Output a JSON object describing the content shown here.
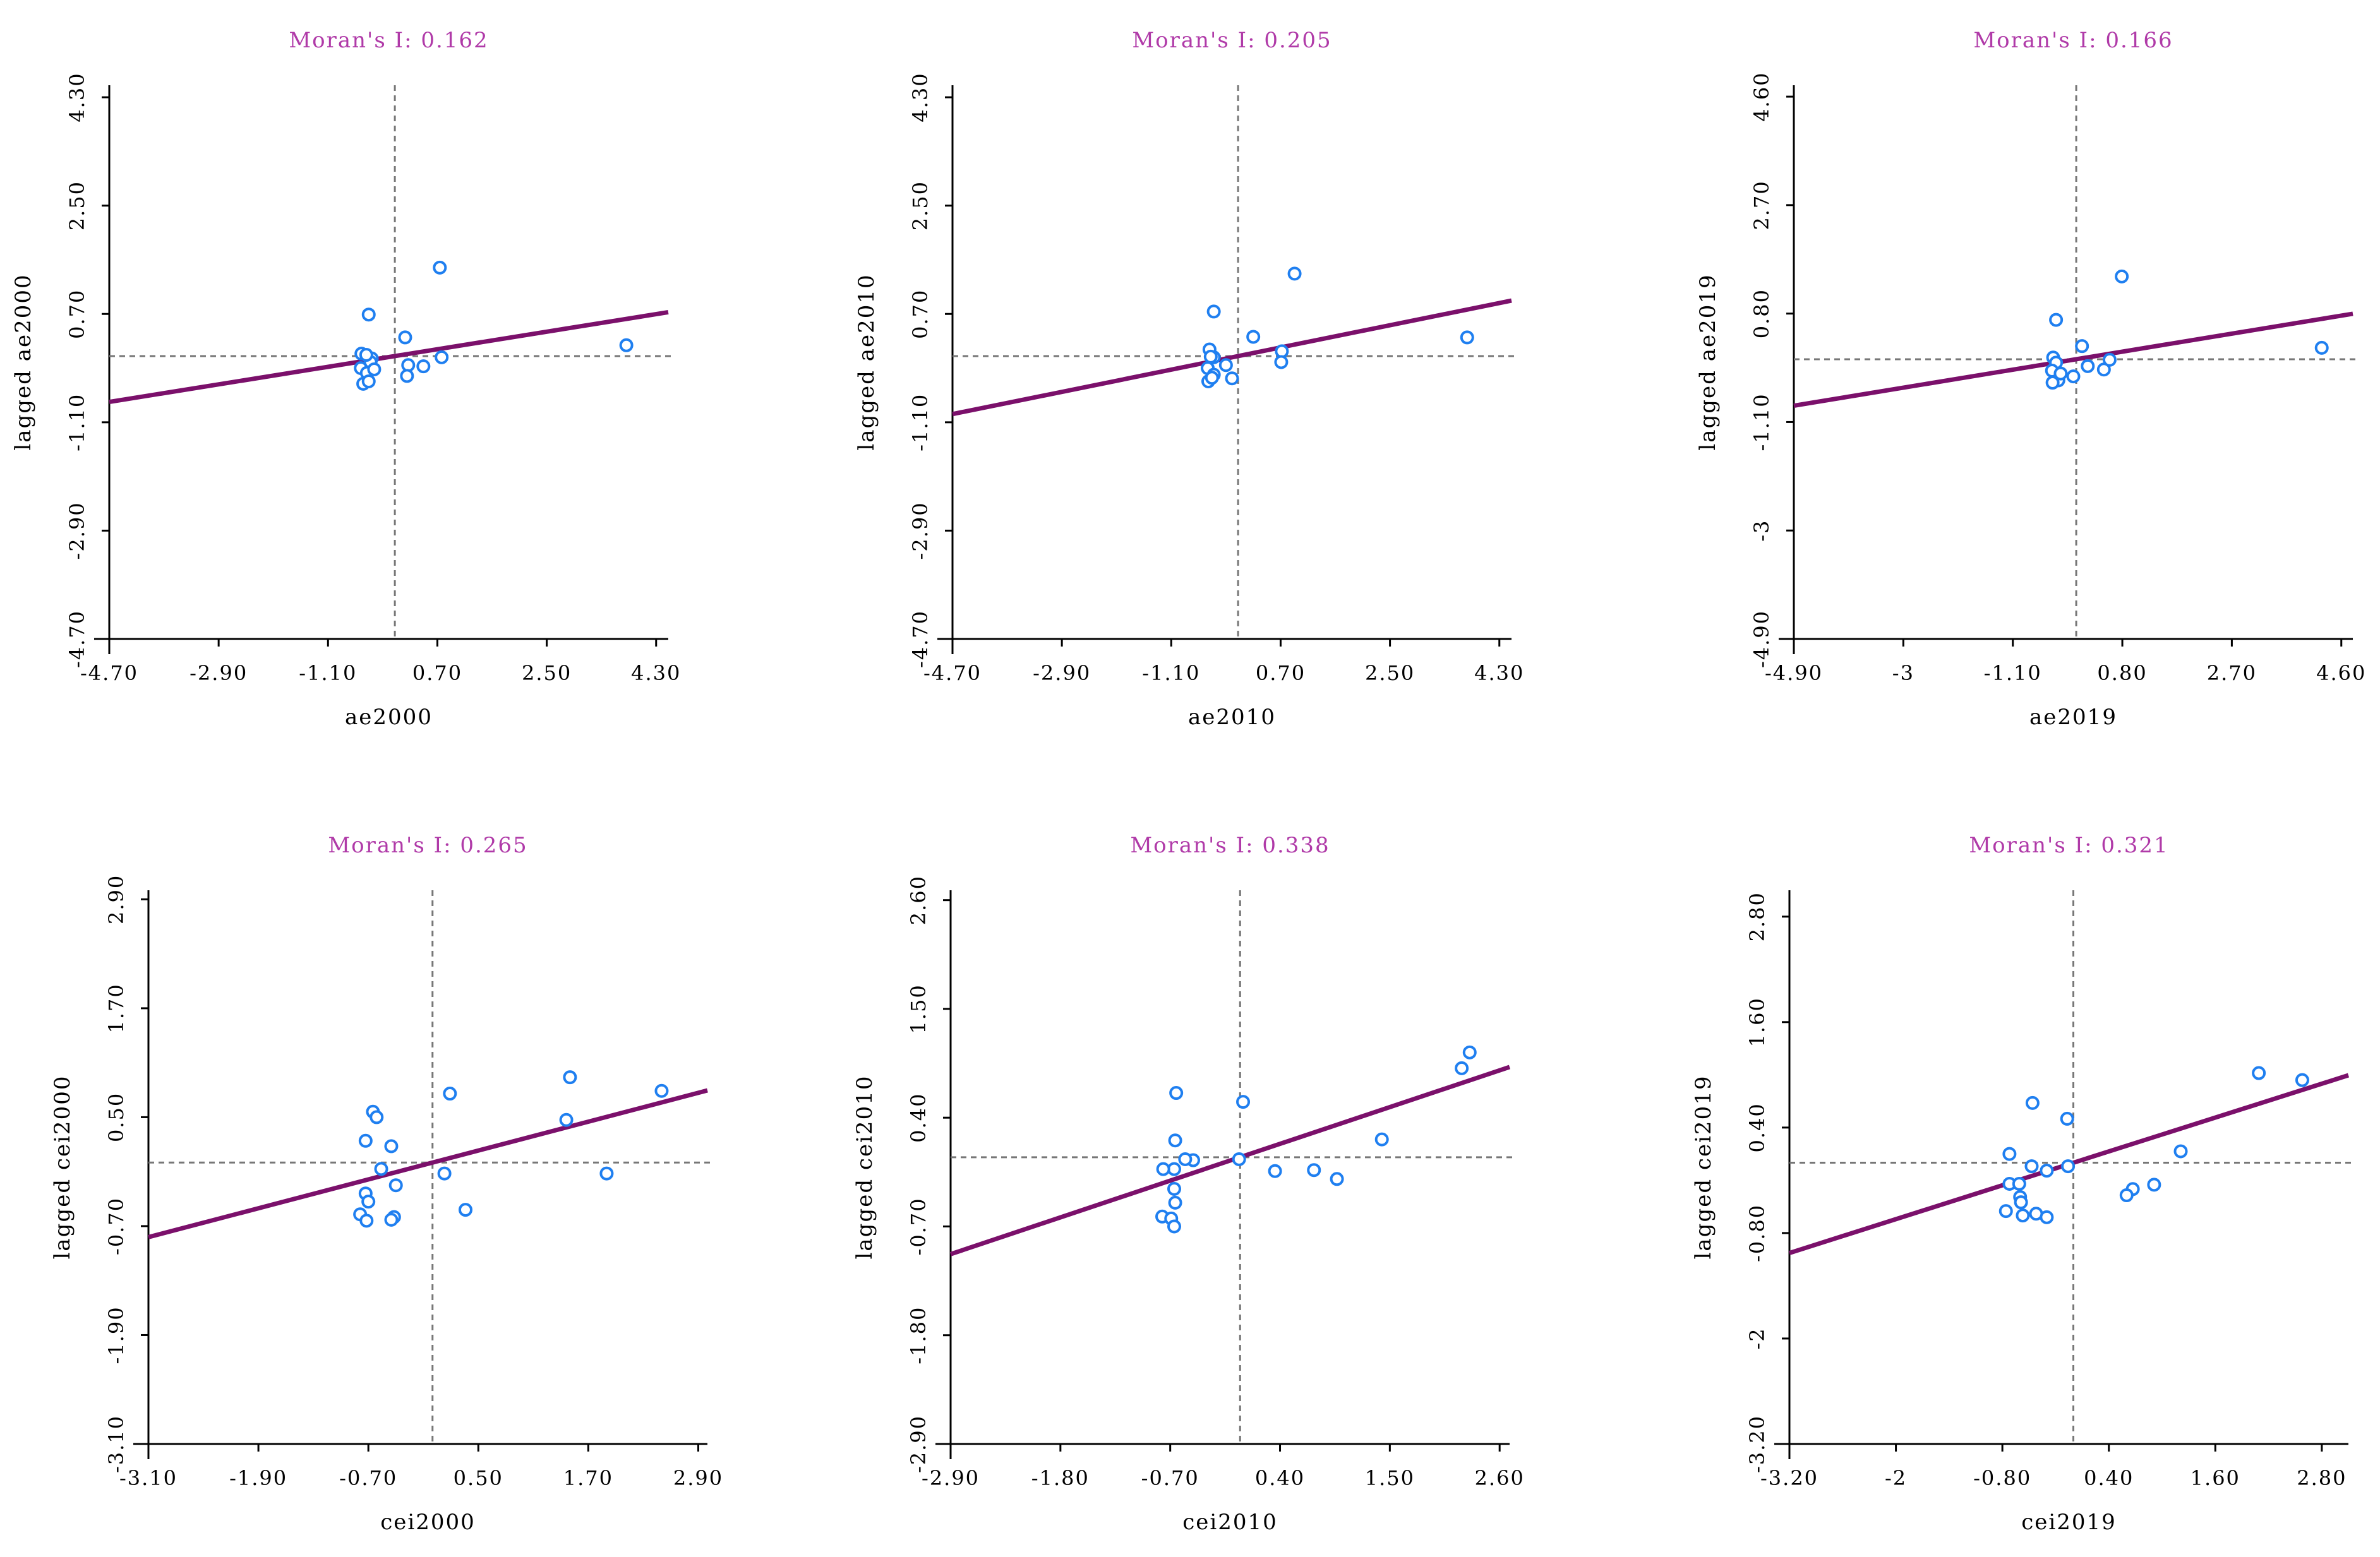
{
  "chart_data": [
    {
      "type": "scatter",
      "title": "Moran's I: 0.162",
      "xlabel": "ae2000",
      "ylabel": "lagged ae2000",
      "xlim": [
        -4.7,
        4.5
      ],
      "ylim": [
        -4.7,
        4.5
      ],
      "xticks": [
        "-4.70",
        "-2.90",
        "-1.10",
        "0.70",
        "2.50",
        "4.30"
      ],
      "xtick_values": [
        -4.7,
        -2.9,
        -1.1,
        0.7,
        2.5,
        4.3
      ],
      "yticks": [
        "-4.70",
        "-2.90",
        "-1.10",
        "0.70",
        "2.50",
        "4.30"
      ],
      "ytick_values": [
        -4.7,
        -2.9,
        -1.1,
        0.7,
        2.5,
        4.3
      ],
      "slope": 0.162,
      "points": [
        [
          0.74,
          1.47
        ],
        [
          -0.43,
          0.69
        ],
        [
          0.17,
          0.31
        ],
        [
          3.81,
          0.18
        ],
        [
          -0.55,
          0.04
        ],
        [
          -0.38,
          -0.04
        ],
        [
          -0.56,
          -0.2
        ],
        [
          -0.4,
          -0.1
        ],
        [
          -0.46,
          -0.28
        ],
        [
          -0.52,
          -0.46
        ],
        [
          -0.43,
          -0.42
        ],
        [
          -0.34,
          -0.22
        ],
        [
          0.22,
          -0.15
        ],
        [
          0.2,
          -0.33
        ],
        [
          0.47,
          -0.17
        ],
        [
          0.77,
          -0.02
        ],
        [
          -0.47,
          0.02
        ]
      ]
    },
    {
      "type": "scatter",
      "title": "Moran's I: 0.205",
      "xlabel": "ae2010",
      "ylabel": "lagged ae2010",
      "xlim": [
        -4.7,
        4.5
      ],
      "ylim": [
        -4.7,
        4.5
      ],
      "xticks": [
        "-4.70",
        "-2.90",
        "-1.10",
        "0.70",
        "2.50",
        "4.30"
      ],
      "xtick_values": [
        -4.7,
        -2.9,
        -1.1,
        0.7,
        2.5,
        4.3
      ],
      "yticks": [
        "-4.70",
        "-2.90",
        "-1.10",
        "0.70",
        "2.50",
        "4.30"
      ],
      "ytick_values": [
        -4.7,
        -2.9,
        -1.1,
        0.7,
        2.5,
        4.3
      ],
      "slope": 0.205,
      "points": [
        [
          0.93,
          1.37
        ],
        [
          -0.4,
          0.74
        ],
        [
          0.25,
          0.32
        ],
        [
          3.77,
          0.31
        ],
        [
          -0.47,
          0.11
        ],
        [
          -0.4,
          -0.02
        ],
        [
          -0.5,
          -0.2
        ],
        [
          -0.4,
          -0.31
        ],
        [
          -0.49,
          -0.42
        ],
        [
          -0.43,
          -0.36
        ],
        [
          -0.1,
          -0.37
        ],
        [
          0.72,
          0.08
        ],
        [
          0.71,
          -0.1
        ],
        [
          -0.45,
          -0.01
        ],
        [
          -0.2,
          -0.15
        ]
      ]
    },
    {
      "type": "scatter",
      "title": "Moran's I: 0.166",
      "xlabel": "ae2019",
      "ylabel": "lagged ae2019",
      "xlim": [
        -4.9,
        4.8
      ],
      "ylim": [
        -4.9,
        4.8
      ],
      "xticks": [
        "-4.90",
        "-3",
        "-1.10",
        "0.80",
        "2.70",
        "4.60"
      ],
      "xtick_values": [
        -4.9,
        -3.0,
        -1.1,
        0.8,
        2.7,
        4.6
      ],
      "yticks": [
        "-4.90",
        "-3",
        "-1.10",
        "0.80",
        "2.70",
        "4.60"
      ],
      "ytick_values": [
        -4.9,
        -3.0,
        -1.1,
        0.8,
        2.7,
        4.6
      ],
      "slope": 0.166,
      "points": [
        [
          0.79,
          1.45
        ],
        [
          -0.35,
          0.69
        ],
        [
          0.1,
          0.23
        ],
        [
          4.26,
          0.2
        ],
        [
          -0.4,
          0.03
        ],
        [
          -0.35,
          -0.06
        ],
        [
          -0.42,
          -0.2
        ],
        [
          -0.31,
          -0.37
        ],
        [
          -0.41,
          -0.41
        ],
        [
          -0.05,
          -0.3
        ],
        [
          0.2,
          -0.12
        ],
        [
          0.48,
          -0.18
        ],
        [
          0.58,
          -0.01
        ],
        [
          -0.27,
          -0.25
        ]
      ]
    },
    {
      "type": "scatter",
      "title": "Moran's I: 0.265",
      "xlabel": "cei2000",
      "ylabel": "lagged cei2000",
      "xlim": [
        -3.1,
        3.0
      ],
      "ylim": [
        -3.1,
        3.0
      ],
      "xticks": [
        "-3.10",
        "-1.90",
        "-0.70",
        "0.50",
        "1.70",
        "2.90"
      ],
      "xtick_values": [
        -3.1,
        -1.9,
        -0.7,
        0.5,
        1.7,
        2.9
      ],
      "yticks": [
        "-3.10",
        "-1.90",
        "-0.70",
        "0.50",
        "1.70",
        "2.90"
      ],
      "ytick_values": [
        -3.1,
        -1.9,
        -0.7,
        0.5,
        1.7,
        2.9
      ],
      "slope": 0.265,
      "points": [
        [
          1.5,
          0.94
        ],
        [
          2.5,
          0.79
        ],
        [
          0.19,
          0.76
        ],
        [
          -0.65,
          0.56
        ],
        [
          -0.61,
          0.5
        ],
        [
          1.46,
          0.47
        ],
        [
          -0.73,
          0.24
        ],
        [
          -0.45,
          0.18
        ],
        [
          -0.56,
          -0.07
        ],
        [
          -0.4,
          -0.25
        ],
        [
          0.13,
          -0.12
        ],
        [
          1.9,
          -0.12
        ],
        [
          -0.73,
          -0.34
        ],
        [
          -0.7,
          -0.43
        ],
        [
          -0.79,
          -0.57
        ],
        [
          -0.72,
          -0.64
        ],
        [
          -0.42,
          -0.6
        ],
        [
          -0.45,
          -0.63
        ],
        [
          0.36,
          -0.52
        ]
      ]
    },
    {
      "type": "scatter",
      "title": "Moran's I: 0.338",
      "xlabel": "cei2010",
      "ylabel": "lagged cei2010",
      "xlim": [
        -2.9,
        2.7
      ],
      "ylim": [
        -2.9,
        2.7
      ],
      "xticks": [
        "-2.90",
        "-1.80",
        "-0.70",
        "0.40",
        "1.50",
        "2.60"
      ],
      "xtick_values": [
        -2.9,
        -1.8,
        -0.7,
        0.4,
        1.5,
        2.6
      ],
      "yticks": [
        "-2.90",
        "-1.80",
        "-0.70",
        "0.40",
        "1.50",
        "2.60"
      ],
      "ytick_values": [
        -2.9,
        -1.8,
        -0.7,
        0.4,
        1.5,
        2.6
      ],
      "slope": 0.338,
      "points": [
        [
          2.3,
          1.06
        ],
        [
          2.22,
          0.9
        ],
        [
          -0.64,
          0.65
        ],
        [
          0.03,
          0.56
        ],
        [
          1.42,
          0.18
        ],
        [
          -0.65,
          0.17
        ],
        [
          -0.47,
          -0.03
        ],
        [
          -0.55,
          -0.02
        ],
        [
          -0.01,
          -0.02
        ],
        [
          -0.66,
          -0.12
        ],
        [
          -0.77,
          -0.12
        ],
        [
          0.35,
          -0.14
        ],
        [
          0.74,
          -0.13
        ],
        [
          0.97,
          -0.22
        ],
        [
          -0.66,
          -0.32
        ],
        [
          -0.65,
          -0.46
        ],
        [
          -0.78,
          -0.6
        ],
        [
          -0.69,
          -0.62
        ],
        [
          -0.66,
          -0.7
        ]
      ]
    },
    {
      "type": "scatter",
      "title": "Moran's I: 0.321",
      "xlabel": "cei2019",
      "ylabel": "lagged cei2019",
      "xlim": [
        -3.2,
        3.1
      ],
      "ylim": [
        -3.2,
        3.1
      ],
      "xticks": [
        "-3.20",
        "-2",
        "-0.80",
        "0.40",
        "1.60",
        "2.80"
      ],
      "xtick_values": [
        -3.2,
        -2.0,
        -0.8,
        0.4,
        1.6,
        2.8
      ],
      "yticks": [
        "-3.20",
        "-2",
        "-0.80",
        "0.40",
        "1.60",
        "2.80"
      ],
      "ytick_values": [
        -3.2,
        -2.0,
        -0.8,
        0.4,
        1.6,
        2.8
      ],
      "slope": 0.321,
      "points": [
        [
          2.09,
          1.02
        ],
        [
          2.58,
          0.94
        ],
        [
          -0.46,
          0.68
        ],
        [
          -0.07,
          0.5
        ],
        [
          -0.72,
          0.1
        ],
        [
          1.21,
          0.13
        ],
        [
          -0.47,
          -0.04
        ],
        [
          -0.3,
          -0.09
        ],
        [
          -0.06,
          -0.04
        ],
        [
          -0.72,
          -0.24
        ],
        [
          -0.61,
          -0.24
        ],
        [
          -0.6,
          -0.39
        ],
        [
          -0.59,
          -0.45
        ],
        [
          0.91,
          -0.25
        ],
        [
          0.67,
          -0.3
        ],
        [
          0.6,
          -0.37
        ],
        [
          -0.76,
          -0.55
        ],
        [
          -0.57,
          -0.6
        ],
        [
          -0.42,
          -0.58
        ],
        [
          -0.3,
          -0.62
        ]
      ]
    }
  ]
}
